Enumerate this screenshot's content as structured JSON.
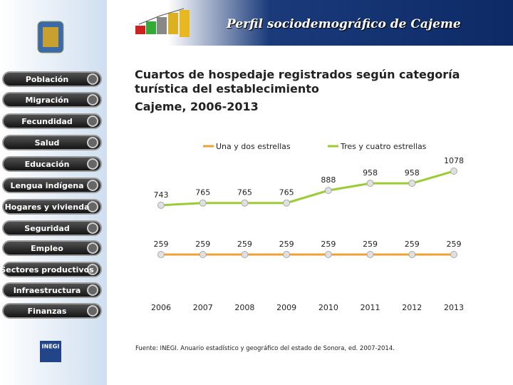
{
  "header": {
    "title": "Perfil sociodemográfico de Cajeme"
  },
  "menu": [
    "Población",
    "Migración",
    "Fecundidad",
    "Salud",
    "Educación",
    "Lengua indígena",
    "Hogares y vivienda",
    "Seguridad",
    "Empleo",
    "Sectores productivos",
    "Infraestructura",
    "Finanzas"
  ],
  "logo": {
    "name": "INEGI"
  },
  "chart_data": {
    "type": "line",
    "title": "Cuartos de hospedaje registrados según categoría turística del establecimiento",
    "subtitle": "Cajeme, 2006-2013",
    "categories": [
      "2006",
      "2007",
      "2008",
      "2009",
      "2010",
      "2011",
      "2012",
      "2013"
    ],
    "series": [
      {
        "name": "Una y dos estrellas",
        "color": "#f0a030",
        "values": [
          259,
          259,
          259,
          259,
          259,
          259,
          259,
          259
        ]
      },
      {
        "name": "Tres y cuatro estrellas",
        "color": "#9acd32",
        "values": [
          743,
          765,
          765,
          765,
          888,
          958,
          958,
          1078
        ]
      }
    ],
    "source": "Fuente: INEGI. Anuario estadístico y geográfico del estado de Sonora, ed. 2007-2014."
  }
}
